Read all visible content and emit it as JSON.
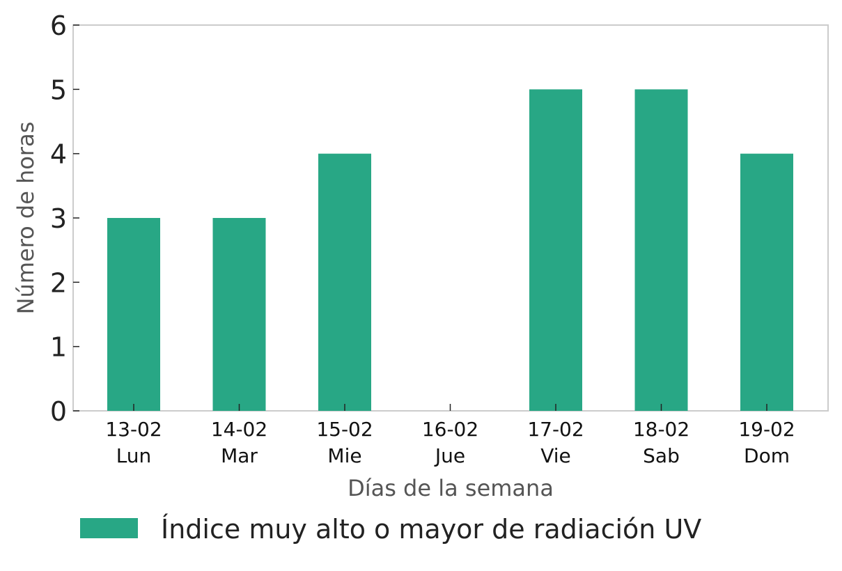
{
  "chart_data": {
    "type": "bar",
    "categories": [
      {
        "date": "13-02",
        "day": "Lun"
      },
      {
        "date": "14-02",
        "day": "Mar"
      },
      {
        "date": "15-02",
        "day": "Mie"
      },
      {
        "date": "16-02",
        "day": "Jue"
      },
      {
        "date": "17-02",
        "day": "Vie"
      },
      {
        "date": "18-02",
        "day": "Sab"
      },
      {
        "date": "19-02",
        "day": "Dom"
      }
    ],
    "series": [
      {
        "name": "Índice muy alto o mayor de radiación UV",
        "values": [
          3,
          3,
          4,
          0,
          5,
          5,
          4
        ],
        "color": "#28a785"
      }
    ],
    "xlabel": "Días de la semana",
    "ylabel": "Número de horas",
    "ylim": [
      0,
      6
    ],
    "yticks": [
      0,
      1,
      2,
      3,
      4,
      5,
      6
    ],
    "grid": false,
    "legend": "bottom-left"
  }
}
